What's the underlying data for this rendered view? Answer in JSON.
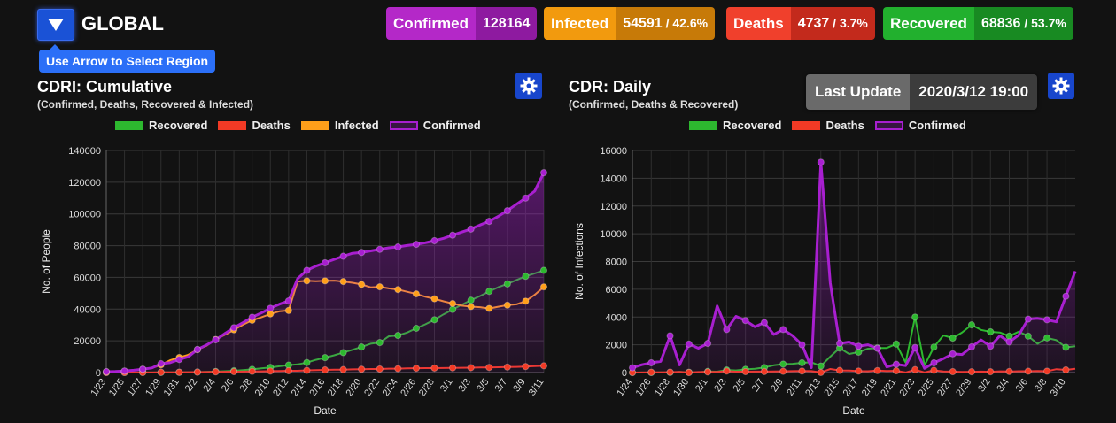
{
  "header": {
    "region_title": "GLOBAL",
    "tooltip": "Use Arrow to Select Region"
  },
  "stats": [
    {
      "label": "Confirmed",
      "value": "128164",
      "pct": "",
      "label_bg": "#b428c8",
      "value_bg": "#8e1aa0"
    },
    {
      "label": "Infected",
      "value": "54591",
      "pct": " / 42.6%",
      "label_bg": "#f29a0e",
      "value_bg": "#c77a08"
    },
    {
      "label": "Deaths",
      "value": "4737",
      "pct": " / 3.7%",
      "label_bg": "#f0402c",
      "value_bg": "#c32a1c"
    },
    {
      "label": "Recovered",
      "value": "68836",
      "pct": " / 53.7%",
      "label_bg": "#22b02e",
      "value_bg": "#188a22"
    }
  ],
  "last_update": {
    "label": "Last Update",
    "value": "2020/3/12 19:00"
  },
  "colors": {
    "recovered": "#2db82f",
    "deaths": "#f23a25",
    "infected": "#ff9f1a",
    "confirmed": "#a81fd0"
  },
  "cumulative": {
    "title": "CDRI: Cumulative",
    "subtitle": "(Confirmed, Deaths, Recovered & Infected)",
    "legend": [
      "Recovered",
      "Deaths",
      "Infected",
      "Confirmed"
    ]
  },
  "daily": {
    "title": "CDR: Daily",
    "subtitle": "(Confirmed, Deaths & Recovered)",
    "legend": [
      "Recovered",
      "Deaths",
      "Confirmed"
    ]
  },
  "chart_data": [
    {
      "type": "line",
      "title": "CDRI: Cumulative",
      "xlabel": "Date",
      "ylabel": "No. of People",
      "ylim": [
        0,
        140000
      ],
      "yticks": [
        0,
        20000,
        40000,
        60000,
        80000,
        100000,
        120000,
        140000
      ],
      "x": [
        "1/23",
        "1/24",
        "1/25",
        "1/26",
        "1/27",
        "1/28",
        "1/29",
        "1/30",
        "1/31",
        "2/1",
        "2/2",
        "2/3",
        "2/4",
        "2/5",
        "2/6",
        "2/7",
        "2/8",
        "2/9",
        "2/10",
        "2/11",
        "2/12",
        "2/13",
        "2/14",
        "2/15",
        "2/16",
        "2/17",
        "2/18",
        "2/19",
        "2/20",
        "2/21",
        "2/22",
        "2/23",
        "2/24",
        "2/25",
        "2/26",
        "2/27",
        "2/28",
        "2/29",
        "3/1",
        "3/2",
        "3/3",
        "3/4",
        "3/5",
        "3/6",
        "3/7",
        "3/8",
        "3/9",
        "3/10",
        "3/11"
      ],
      "xticks": [
        "1/23",
        "1/25",
        "1/27",
        "1/29",
        "1/31",
        "2/2",
        "2/4",
        "2/6",
        "2/8",
        "2/10",
        "2/12",
        "2/14",
        "2/16",
        "2/18",
        "2/20",
        "2/22",
        "2/24",
        "2/26",
        "2/28",
        "3/1",
        "3/3",
        "3/5",
        "3/7",
        "3/9",
        "3/11"
      ],
      "grid": true,
      "legend_position": "top",
      "series": [
        {
          "name": "Recovered",
          "color": "#2db82f",
          "values": [
            28,
            30,
            36,
            39,
            52,
            61,
            107,
            126,
            143,
            222,
            284,
            472,
            623,
            852,
            1124,
            1487,
            2011,
            2616,
            3244,
            3946,
            4683,
            5150,
            6295,
            8058,
            9395,
            10865,
            12583,
            14352,
            16121,
            18177,
            18890,
            22886,
            23394,
            25227,
            27905,
            30384,
            33277,
            36711,
            39782,
            42716,
            45602,
            48228,
            51170,
            53796,
            55866,
            58359,
            60695,
            62512,
            64404
          ]
        },
        {
          "name": "Deaths",
          "color": "#f23a25",
          "values": [
            17,
            18,
            26,
            42,
            56,
            82,
            131,
            133,
            171,
            213,
            259,
            362,
            426,
            492,
            564,
            634,
            719,
            806,
            906,
            1013,
            1113,
            1118,
            1371,
            1523,
            1666,
            1770,
            1868,
            2007,
            2122,
            2247,
            2251,
            2458,
            2469,
            2629,
            2708,
            2770,
            2814,
            2872,
            2941,
            2996,
            3085,
            3160,
            3254,
            3348,
            3460,
            3558,
            3803,
            3996,
            4262
          ]
        },
        {
          "name": "Infected",
          "color": "#ff9f1a",
          "values": [
            510,
            605,
            879,
            1358,
            2067,
            2837,
            4845,
            7776,
            9463,
            11226,
            14420,
            16897,
            20839,
            23734,
            26926,
            30201,
            32910,
            34798,
            36938,
            38580,
            39094,
            57389,
            57839,
            57580,
            57824,
            57946,
            57394,
            56621,
            55540,
            53734,
            54025,
            53036,
            52300,
            50919,
            49600,
            47785,
            46500,
            44920,
            43515,
            42180,
            41575,
            41200,
            40400,
            41500,
            42500,
            43000,
            45000,
            49000,
            54000
          ]
        },
        {
          "name": "Confirmed",
          "color": "#a81fd0",
          "values": [
            555,
            653,
            941,
            1438,
            2118,
            2927,
            5578,
            6167,
            8235,
            9927,
            14557,
            17391,
            20630,
            24545,
            28266,
            31439,
            34876,
            37552,
            40553,
            43099,
            45134,
            59287,
            64438,
            67100,
            69197,
            71329,
            73332,
            75184,
            75700,
            76677,
            77673,
            78651,
            79205,
            80087,
            80828,
            81820,
            83112,
            84615,
            86604,
            88585,
            90443,
            93016,
            95314,
            98425,
            102050,
            106099,
            109991,
            114381,
            126000
          ]
        }
      ]
    },
    {
      "type": "line",
      "title": "CDR: Daily",
      "xlabel": "Date",
      "ylabel": "No. of Infections",
      "ylim": [
        0,
        16000
      ],
      "yticks": [
        0,
        2000,
        4000,
        6000,
        8000,
        10000,
        12000,
        14000,
        16000
      ],
      "x": [
        "1/24",
        "1/25",
        "1/26",
        "1/27",
        "1/28",
        "1/29",
        "1/30",
        "1/31",
        "2/1",
        "2/2",
        "2/3",
        "2/4",
        "2/5",
        "2/6",
        "2/7",
        "2/8",
        "2/9",
        "2/10",
        "2/11",
        "2/12",
        "2/13",
        "2/14",
        "2/15",
        "2/16",
        "2/17",
        "2/18",
        "2/19",
        "2/20",
        "2/21",
        "2/22",
        "2/23",
        "2/24",
        "2/25",
        "2/26",
        "2/27",
        "2/28",
        "2/29",
        "3/1",
        "3/2",
        "3/3",
        "3/4",
        "3/5",
        "3/6",
        "3/7",
        "3/8",
        "3/9",
        "3/10",
        "3/11"
      ],
      "xticks": [
        "1/24",
        "1/26",
        "1/28",
        "1/30",
        "2/1",
        "2/3",
        "2/5",
        "2/7",
        "2/9",
        "2/11",
        "2/13",
        "2/15",
        "2/17",
        "2/19",
        "2/21",
        "2/23",
        "2/25",
        "2/27",
        "2/29",
        "3/2",
        "3/4",
        "3/6",
        "3/8",
        "3/10"
      ],
      "grid": true,
      "legend_position": "top",
      "series": [
        {
          "name": "Recovered",
          "color": "#2db82f",
          "values": [
            2,
            6,
            3,
            13,
            9,
            46,
            19,
            17,
            79,
            62,
            188,
            151,
            229,
            272,
            363,
            524,
            605,
            628,
            702,
            737,
            467,
            1145,
            1763,
            1337,
            1470,
            1718,
            1769,
            1769,
            2056,
            713,
            3996,
            508,
            1833,
            2678,
            2479,
            2893,
            3434,
            3071,
            2934,
            2886,
            2626,
            2942,
            2626,
            2070,
            2493,
            2336,
            1817,
            1892
          ]
        },
        {
          "name": "Deaths",
          "color": "#f23a25",
          "values": [
            1,
            8,
            16,
            14,
            26,
            49,
            2,
            38,
            42,
            46,
            103,
            64,
            66,
            72,
            70,
            85,
            87,
            100,
            107,
            100,
            5,
            253,
            152,
            143,
            104,
            98,
            139,
            115,
            125,
            4,
            207,
            11,
            160,
            79,
            62,
            44,
            58,
            69,
            55,
            89,
            75,
            94,
            94,
            112,
            98,
            245,
            193,
            266
          ]
        },
        {
          "name": "Confirmed",
          "color": "#a81fd0",
          "values": [
            345,
            560,
            700,
            800,
            2650,
            550,
            2050,
            1750,
            2100,
            4800,
            3100,
            4050,
            3750,
            3300,
            3600,
            2750,
            3100,
            2650,
            2000,
            350,
            15150,
            6450,
            2100,
            2200,
            1900,
            2000,
            1750,
            400,
            600,
            500,
            1800,
            300,
            700,
            1000,
            1350,
            1300,
            1850,
            2350,
            1900,
            2650,
            2200,
            2700,
            3850,
            3900,
            3800,
            3650,
            5500,
            7300
          ]
        }
      ]
    }
  ]
}
